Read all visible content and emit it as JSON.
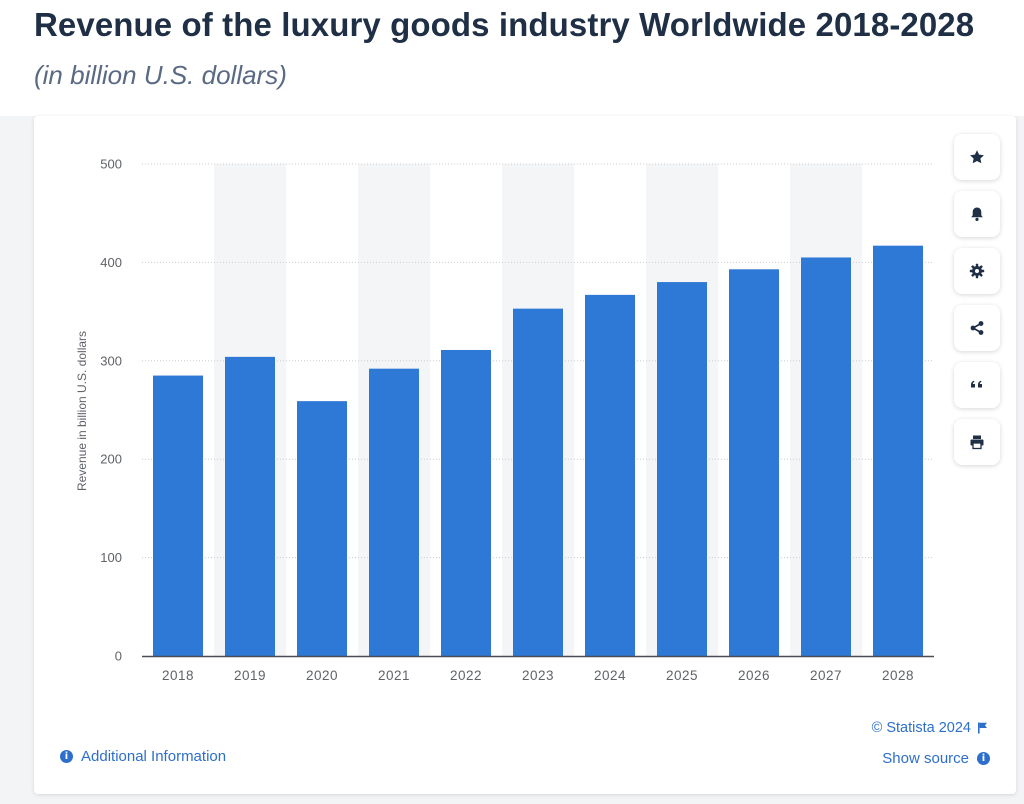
{
  "header": {
    "title": "Revenue of the luxury goods industry Worldwide 2018-2028",
    "subtitle": "(in billion U.S. dollars)"
  },
  "toolbar": {
    "buttons": [
      {
        "name": "favorite",
        "icon": "star-icon"
      },
      {
        "name": "notification",
        "icon": "bell-icon"
      },
      {
        "name": "settings",
        "icon": "gear-icon"
      },
      {
        "name": "share",
        "icon": "share-icon"
      },
      {
        "name": "cite",
        "icon": "quote-icon"
      },
      {
        "name": "print",
        "icon": "print-icon"
      }
    ]
  },
  "footer": {
    "copyright": "© Statista 2024",
    "show_source": "Show source",
    "additional_info": "Additional Information"
  },
  "colors": {
    "bar": "#2e78d6",
    "band": "#f4f5f7",
    "grid": "#c8ccd2",
    "axis_text": "#5f6368",
    "accent": "#2d6fcb"
  },
  "chart_data": {
    "type": "bar",
    "title": "",
    "xlabel": "",
    "ylabel": "Revenue in billion U.S. dollars",
    "categories": [
      "2018",
      "2019",
      "2020",
      "2021",
      "2022",
      "2023",
      "2024",
      "2025",
      "2026",
      "2027",
      "2028"
    ],
    "values": [
      285,
      304,
      259,
      292,
      311,
      353,
      367,
      380,
      393,
      405,
      417
    ],
    "ylim": [
      0,
      500
    ],
    "yticks": [
      0,
      100,
      200,
      300,
      400,
      500
    ],
    "grid": true,
    "legend": "none"
  }
}
